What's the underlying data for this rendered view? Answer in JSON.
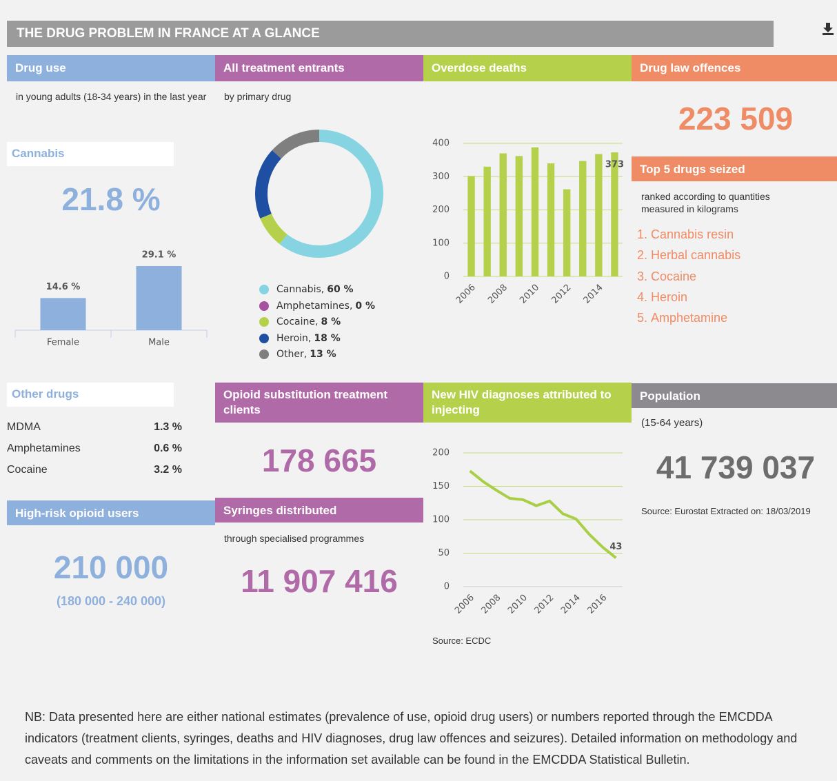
{
  "title": "THE DRUG PROBLEM IN FRANCE AT A GLANCE",
  "drug_use": {
    "heading": "Drug use",
    "description": "in young adults (18-34 years) in the last year",
    "cannabis_heading": "Cannabis",
    "cannabis_value": "21.8 %"
  },
  "other_drugs": {
    "heading": "Other drugs",
    "rows": [
      {
        "name": "MDMA",
        "value": "1.3 %"
      },
      {
        "name": "Amphetamines",
        "value": "0.6 %"
      },
      {
        "name": "Cocaine",
        "value": "3.2 %"
      }
    ]
  },
  "high_risk": {
    "heading": "High-risk opioid users",
    "value": "210 000",
    "range": "(180 000 - 240 000)"
  },
  "treatment": {
    "heading": "All treatment entrants",
    "description": "by primary drug"
  },
  "ost": {
    "heading": "Opioid substitution treatment clients",
    "value": "178 665"
  },
  "syringes": {
    "heading": "Syringes distributed",
    "description": "through specialised programmes",
    "value": "11 907 416"
  },
  "overdose": {
    "heading": "Overdose deaths"
  },
  "hiv": {
    "heading": "New HIV diagnoses attributed to injecting",
    "source": "Source: ECDC"
  },
  "offences": {
    "heading": "Drug law offences",
    "value": "223 509"
  },
  "seizures": {
    "heading": "Top 5 drugs seized",
    "description": "ranked according to quantities measured in kilograms",
    "items": [
      "Cannabis resin",
      "Herbal cannabis",
      "Cocaine",
      "Heroin",
      "Amphetamine"
    ]
  },
  "population": {
    "heading": "Population",
    "description": "(15-64 years)",
    "value": "41 739 037",
    "source": "Source: Eurostat Extracted on: 18/03/2019"
  },
  "note": "NB: Data presented here are either national estimates (prevalence of use, opioid drug users) or numbers reported through the EMCDDA indicators (treatment clients, syringes, deaths and HIV diagnoses, drug law offences and seizures). Detailed information on methodology and caveats and comments on the limitations in the information set available can be found in the EMCDDA Statistical Bulletin.",
  "chart_data": [
    {
      "type": "bar",
      "categories": [
        "Female",
        "Male"
      ],
      "values": [
        14.6,
        29.1
      ],
      "value_labels": [
        "14.6 %",
        "29.1 %"
      ],
      "color": "#8eb0dc"
    },
    {
      "type": "pie",
      "categories": [
        "Cannabis",
        "Amphetamines",
        "Cocaine",
        "Heroin",
        "Other"
      ],
      "values": [
        60,
        0,
        8,
        18,
        13
      ],
      "value_labels": [
        "60 %",
        "0 %",
        "8 %",
        "18 %",
        "13 %"
      ],
      "colors": [
        "#86d4e2",
        "#a8519f",
        "#b5d14b",
        "#1f4fa3",
        "#7f7f7f"
      ]
    },
    {
      "type": "bar",
      "categories": [
        "2006",
        null,
        "2008",
        null,
        "2010",
        null,
        "2012",
        null,
        "2014",
        null
      ],
      "values": [
        302,
        330,
        370,
        362,
        388,
        340,
        262,
        347,
        368,
        373
      ],
      "value_labels": [
        null,
        null,
        null,
        null,
        null,
        null,
        null,
        null,
        null,
        "373"
      ],
      "color": "#b5d14b",
      "ylim": [
        0,
        400
      ],
      "yticks": [
        0,
        100,
        200,
        300,
        400
      ],
      "grid": true
    },
    {
      "type": "line",
      "x": [
        2006,
        2007,
        2008,
        2009,
        2010,
        2011,
        2012,
        2013,
        2014,
        2015,
        2016,
        2017
      ],
      "values": [
        173,
        157,
        144,
        132,
        130,
        121,
        128,
        109,
        101,
        78,
        59,
        43
      ],
      "value_labels": [
        null,
        null,
        null,
        null,
        null,
        null,
        null,
        null,
        null,
        null,
        null,
        "43"
      ],
      "color": "#a9cf46",
      "xlim": [
        2005.5,
        2017.5
      ],
      "xticks": [
        2006,
        2008,
        2010,
        2012,
        2014,
        2016
      ],
      "ylim": [
        0,
        200
      ],
      "yticks": [
        0,
        50,
        100,
        150,
        200
      ],
      "grid": true
    }
  ]
}
